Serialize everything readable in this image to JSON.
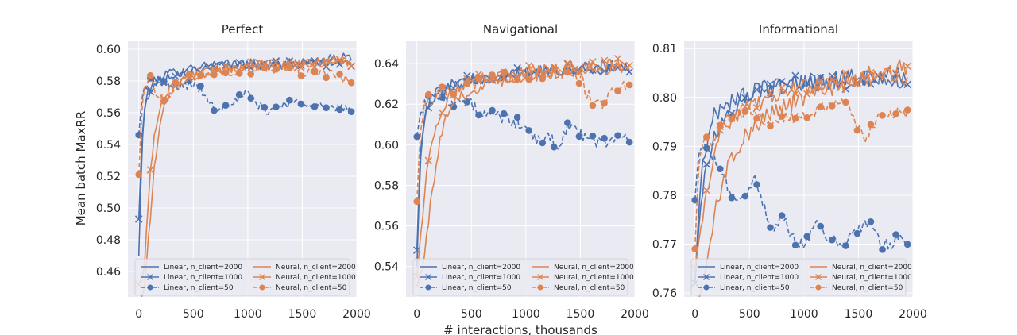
{
  "figure": {
    "xlabel": "# interactions, thousands",
    "ylabel": "Mean batch MaxRR"
  },
  "colors": {
    "linear": "#4c72b0",
    "neural": "#dd8452",
    "panel_bg": "#eaeaf2",
    "grid": "#ffffff"
  },
  "legend": {
    "placement": "lower-center",
    "entries": [
      {
        "label": "Linear, n_client=2000",
        "color": "#4c72b0",
        "style": "solid",
        "marker": "none"
      },
      {
        "label": "Neural, n_client=2000",
        "color": "#dd8452",
        "style": "solid",
        "marker": "none"
      },
      {
        "label": "Linear, n_client=1000",
        "color": "#4c72b0",
        "style": "solid",
        "marker": "x"
      },
      {
        "label": "Neural, n_client=1000",
        "color": "#dd8452",
        "style": "solid",
        "marker": "x"
      },
      {
        "label": "Linear, n_client=50",
        "color": "#4c72b0",
        "style": "dashed",
        "marker": "circle"
      },
      {
        "label": "Neural, n_client=50",
        "color": "#dd8452",
        "style": "dashed",
        "marker": "circle"
      }
    ]
  },
  "chart_data": [
    {
      "type": "line",
      "title": "Perfect",
      "xlim": [
        -100,
        2000
      ],
      "ylim": [
        0.444,
        0.605
      ],
      "xticks": [
        0,
        500,
        1000,
        1500,
        2000
      ],
      "yticks": [
        0.46,
        0.48,
        0.5,
        0.52,
        0.54,
        0.56,
        0.58,
        0.6
      ],
      "ytick_labels": [
        "0.46",
        "0.48",
        "0.50",
        "0.52",
        "0.54",
        "0.56",
        "0.58",
        "0.60"
      ],
      "series": [
        {
          "name": "Linear, n_client=2000",
          "color": "#4c72b0",
          "dash": "solid",
          "marker": "none",
          "noise": 0.003,
          "x": [
            0,
            30,
            60,
            100,
            150,
            200,
            300,
            400,
            500,
            700,
            1000,
            1300,
            1600,
            1800,
            1950
          ],
          "y": [
            0.47,
            0.54,
            0.568,
            0.576,
            0.58,
            0.583,
            0.585,
            0.587,
            0.589,
            0.59,
            0.591,
            0.591,
            0.592,
            0.594,
            0.595
          ]
        },
        {
          "name": "Linear, n_client=1000",
          "color": "#4c72b0",
          "dash": "solid",
          "marker": "x",
          "noise": 0.003,
          "x": [
            0,
            30,
            60,
            100,
            150,
            200,
            300,
            400,
            500,
            700,
            1000,
            1300,
            1600,
            1800,
            1950
          ],
          "y": [
            0.493,
            0.545,
            0.565,
            0.573,
            0.578,
            0.581,
            0.584,
            0.586,
            0.587,
            0.589,
            0.59,
            0.59,
            0.591,
            0.592,
            0.591
          ]
        },
        {
          "name": "Linear, n_client=50",
          "color": "#4c72b0",
          "dash": "dashed",
          "marker": "circle",
          "noise": 0.003,
          "x": [
            0,
            30,
            60,
            100,
            150,
            200,
            300,
            400,
            500,
            600,
            700,
            800,
            900,
            1000,
            1100,
            1200,
            1300,
            1400,
            1500,
            1600,
            1700,
            1800,
            1900,
            1950
          ],
          "y": [
            0.546,
            0.57,
            0.577,
            0.58,
            0.58,
            0.578,
            0.576,
            0.577,
            0.578,
            0.572,
            0.562,
            0.566,
            0.568,
            0.572,
            0.564,
            0.561,
            0.565,
            0.566,
            0.567,
            0.566,
            0.563,
            0.562,
            0.563,
            0.562
          ]
        },
        {
          "name": "Neural, n_client=2000",
          "color": "#dd8452",
          "dash": "solid",
          "marker": "none",
          "noise": 0.003,
          "x": [
            0,
            50,
            100,
            150,
            200,
            250,
            300,
            400,
            500,
            700,
            1000,
            1300,
            1600,
            1800,
            1950
          ],
          "y": [
            0.44,
            0.448,
            0.49,
            0.53,
            0.555,
            0.568,
            0.574,
            0.58,
            0.583,
            0.586,
            0.589,
            0.59,
            0.591,
            0.593,
            0.592
          ]
        },
        {
          "name": "Neural, n_client=1000",
          "color": "#dd8452",
          "dash": "solid",
          "marker": "x",
          "noise": 0.003,
          "x": [
            0,
            50,
            100,
            150,
            200,
            250,
            300,
            400,
            500,
            700,
            1000,
            1300,
            1600,
            1800,
            1950
          ],
          "y": [
            0.452,
            0.46,
            0.52,
            0.55,
            0.565,
            0.572,
            0.577,
            0.582,
            0.584,
            0.587,
            0.59,
            0.59,
            0.591,
            0.593,
            0.59
          ]
        },
        {
          "name": "Neural, n_client=50",
          "color": "#dd8452",
          "dash": "dashed",
          "marker": "circle",
          "noise": 0.003,
          "x": [
            0,
            30,
            60,
            100,
            150,
            200,
            250,
            300,
            400,
            500,
            700,
            1000,
            1300,
            1500,
            1700,
            1850,
            1950
          ],
          "y": [
            0.521,
            0.565,
            0.578,
            0.582,
            0.574,
            0.57,
            0.568,
            0.575,
            0.58,
            0.583,
            0.585,
            0.587,
            0.588,
            0.586,
            0.585,
            0.582,
            0.579
          ]
        }
      ]
    },
    {
      "type": "line",
      "title": "Navigational",
      "xlim": [
        -100,
        2000
      ],
      "ylim": [
        0.525,
        0.651
      ],
      "xticks": [
        0,
        500,
        1000,
        1500,
        2000
      ],
      "yticks": [
        0.54,
        0.56,
        0.58,
        0.6,
        0.62,
        0.64
      ],
      "ytick_labels": [
        "0.54",
        "0.56",
        "0.58",
        "0.60",
        "0.62",
        "0.64"
      ],
      "series": [
        {
          "name": "Linear, n_client=2000",
          "color": "#4c72b0",
          "dash": "solid",
          "marker": "none",
          "noise": 0.003,
          "x": [
            0,
            30,
            60,
            100,
            150,
            200,
            300,
            400,
            500,
            700,
            1000,
            1300,
            1600,
            1800,
            1950
          ],
          "y": [
            0.54,
            0.59,
            0.612,
            0.62,
            0.624,
            0.627,
            0.629,
            0.631,
            0.632,
            0.634,
            0.636,
            0.637,
            0.638,
            0.639,
            0.638
          ]
        },
        {
          "name": "Linear, n_client=1000",
          "color": "#4c72b0",
          "dash": "solid",
          "marker": "x",
          "noise": 0.003,
          "x": [
            0,
            30,
            60,
            100,
            150,
            200,
            300,
            400,
            500,
            700,
            1000,
            1300,
            1600,
            1800,
            1950
          ],
          "y": [
            0.548,
            0.595,
            0.612,
            0.618,
            0.622,
            0.625,
            0.628,
            0.63,
            0.632,
            0.634,
            0.636,
            0.637,
            0.637,
            0.638,
            0.637
          ]
        },
        {
          "name": "Linear, n_client=50",
          "color": "#4c72b0",
          "dash": "dashed",
          "marker": "circle",
          "noise": 0.003,
          "x": [
            0,
            30,
            60,
            100,
            150,
            200,
            300,
            400,
            500,
            600,
            700,
            800,
            900,
            1000,
            1100,
            1200,
            1300,
            1400,
            1500,
            1600,
            1700,
            1800,
            1900,
            1950
          ],
          "y": [
            0.604,
            0.615,
            0.62,
            0.622,
            0.623,
            0.623,
            0.622,
            0.621,
            0.62,
            0.614,
            0.615,
            0.613,
            0.611,
            0.609,
            0.601,
            0.604,
            0.6,
            0.61,
            0.605,
            0.602,
            0.601,
            0.603,
            0.604,
            0.602
          ]
        },
        {
          "name": "Neural, n_client=2000",
          "color": "#dd8452",
          "dash": "solid",
          "marker": "none",
          "noise": 0.003,
          "x": [
            0,
            50,
            100,
            150,
            200,
            250,
            300,
            400,
            500,
            700,
            1000,
            1300,
            1600,
            1800,
            1950
          ],
          "y": [
            0.53,
            0.54,
            0.56,
            0.58,
            0.598,
            0.61,
            0.617,
            0.623,
            0.627,
            0.631,
            0.634,
            0.636,
            0.637,
            0.638,
            0.638
          ]
        },
        {
          "name": "Neural, n_client=1000",
          "color": "#dd8452",
          "dash": "solid",
          "marker": "x",
          "noise": 0.003,
          "x": [
            0,
            50,
            100,
            150,
            200,
            250,
            300,
            400,
            500,
            700,
            1000,
            1300,
            1600,
            1800,
            1950
          ],
          "y": [
            0.535,
            0.565,
            0.59,
            0.605,
            0.614,
            0.62,
            0.624,
            0.628,
            0.631,
            0.634,
            0.636,
            0.638,
            0.639,
            0.64,
            0.639
          ]
        },
        {
          "name": "Neural, n_client=50",
          "color": "#dd8452",
          "dash": "dashed",
          "marker": "circle",
          "noise": 0.003,
          "x": [
            0,
            30,
            60,
            100,
            150,
            200,
            300,
            400,
            500,
            700,
            1000,
            1300,
            1500,
            1600,
            1700,
            1800,
            1900,
            1950
          ],
          "y": [
            0.572,
            0.605,
            0.618,
            0.622,
            0.624,
            0.625,
            0.627,
            0.629,
            0.63,
            0.632,
            0.634,
            0.635,
            0.633,
            0.621,
            0.62,
            0.628,
            0.63,
            0.629
          ]
        }
      ]
    },
    {
      "type": "line",
      "title": "Informational",
      "xlim": [
        -100,
        2000
      ],
      "ylim": [
        0.7592,
        0.8115
      ],
      "xticks": [
        0,
        500,
        1000,
        1500,
        2000
      ],
      "yticks": [
        0.76,
        0.77,
        0.78,
        0.79,
        0.8,
        0.81
      ],
      "ytick_labels": [
        "0.76",
        "0.77",
        "0.78",
        "0.79",
        "0.80",
        "0.81"
      ],
      "series": [
        {
          "name": "Linear, n_client=2000",
          "color": "#4c72b0",
          "dash": "solid",
          "marker": "none",
          "noise": 0.0018,
          "x": [
            0,
            30,
            60,
            100,
            150,
            200,
            300,
            400,
            500,
            700,
            1000,
            1300,
            1600,
            1800,
            1950
          ],
          "y": [
            0.762,
            0.775,
            0.785,
            0.79,
            0.795,
            0.797,
            0.799,
            0.8,
            0.801,
            0.802,
            0.803,
            0.804,
            0.804,
            0.805,
            0.804
          ]
        },
        {
          "name": "Linear, n_client=1000",
          "color": "#4c72b0",
          "dash": "solid",
          "marker": "x",
          "noise": 0.0018,
          "x": [
            0,
            30,
            60,
            100,
            150,
            200,
            300,
            400,
            500,
            700,
            1000,
            1300,
            1600,
            1800,
            1950
          ],
          "y": [
            0.762,
            0.772,
            0.78,
            0.786,
            0.79,
            0.793,
            0.796,
            0.798,
            0.8,
            0.802,
            0.803,
            0.803,
            0.804,
            0.804,
            0.803
          ]
        },
        {
          "name": "Linear, n_client=50",
          "color": "#4c72b0",
          "dash": "dashed",
          "marker": "circle",
          "noise": 0.0012,
          "x": [
            0,
            30,
            60,
            100,
            150,
            200,
            250,
            300,
            400,
            500,
            550,
            600,
            700,
            800,
            900,
            1000,
            1100,
            1200,
            1300,
            1400,
            1500,
            1600,
            1700,
            1800,
            1900,
            1950
          ],
          "y": [
            0.779,
            0.788,
            0.79,
            0.789,
            0.788,
            0.787,
            0.785,
            0.781,
            0.779,
            0.781,
            0.783,
            0.78,
            0.773,
            0.776,
            0.771,
            0.77,
            0.774,
            0.772,
            0.77,
            0.771,
            0.773,
            0.775,
            0.77,
            0.77,
            0.772,
            0.77
          ]
        },
        {
          "name": "Neural, n_client=2000",
          "color": "#dd8452",
          "dash": "solid",
          "marker": "none",
          "noise": 0.0018,
          "x": [
            0,
            50,
            100,
            150,
            200,
            250,
            300,
            400,
            500,
            700,
            1000,
            1300,
            1600,
            1800,
            1950
          ],
          "y": [
            0.756,
            0.76,
            0.766,
            0.772,
            0.778,
            0.782,
            0.786,
            0.79,
            0.793,
            0.797,
            0.8,
            0.802,
            0.804,
            0.805,
            0.804
          ]
        },
        {
          "name": "Neural, n_client=1000",
          "color": "#dd8452",
          "dash": "solid",
          "marker": "x",
          "noise": 0.0018,
          "x": [
            0,
            50,
            100,
            150,
            200,
            250,
            300,
            400,
            500,
            700,
            1000,
            1300,
            1600,
            1800,
            1950
          ],
          "y": [
            0.765,
            0.773,
            0.78,
            0.786,
            0.79,
            0.793,
            0.795,
            0.797,
            0.798,
            0.8,
            0.802,
            0.803,
            0.805,
            0.806,
            0.806
          ]
        },
        {
          "name": "Neural, n_client=50",
          "color": "#dd8452",
          "dash": "dashed",
          "marker": "circle",
          "noise": 0.0012,
          "x": [
            0,
            30,
            60,
            100,
            150,
            200,
            250,
            300,
            400,
            500,
            600,
            700,
            800,
            900,
            1000,
            1100,
            1200,
            1300,
            1400,
            1500,
            1550,
            1600,
            1700,
            1800,
            1900,
            1950
          ],
          "y": [
            0.769,
            0.785,
            0.79,
            0.791,
            0.79,
            0.792,
            0.795,
            0.796,
            0.797,
            0.798,
            0.796,
            0.794,
            0.796,
            0.796,
            0.796,
            0.797,
            0.798,
            0.799,
            0.798,
            0.794,
            0.791,
            0.793,
            0.796,
            0.797,
            0.797,
            0.797
          ]
        }
      ]
    }
  ]
}
